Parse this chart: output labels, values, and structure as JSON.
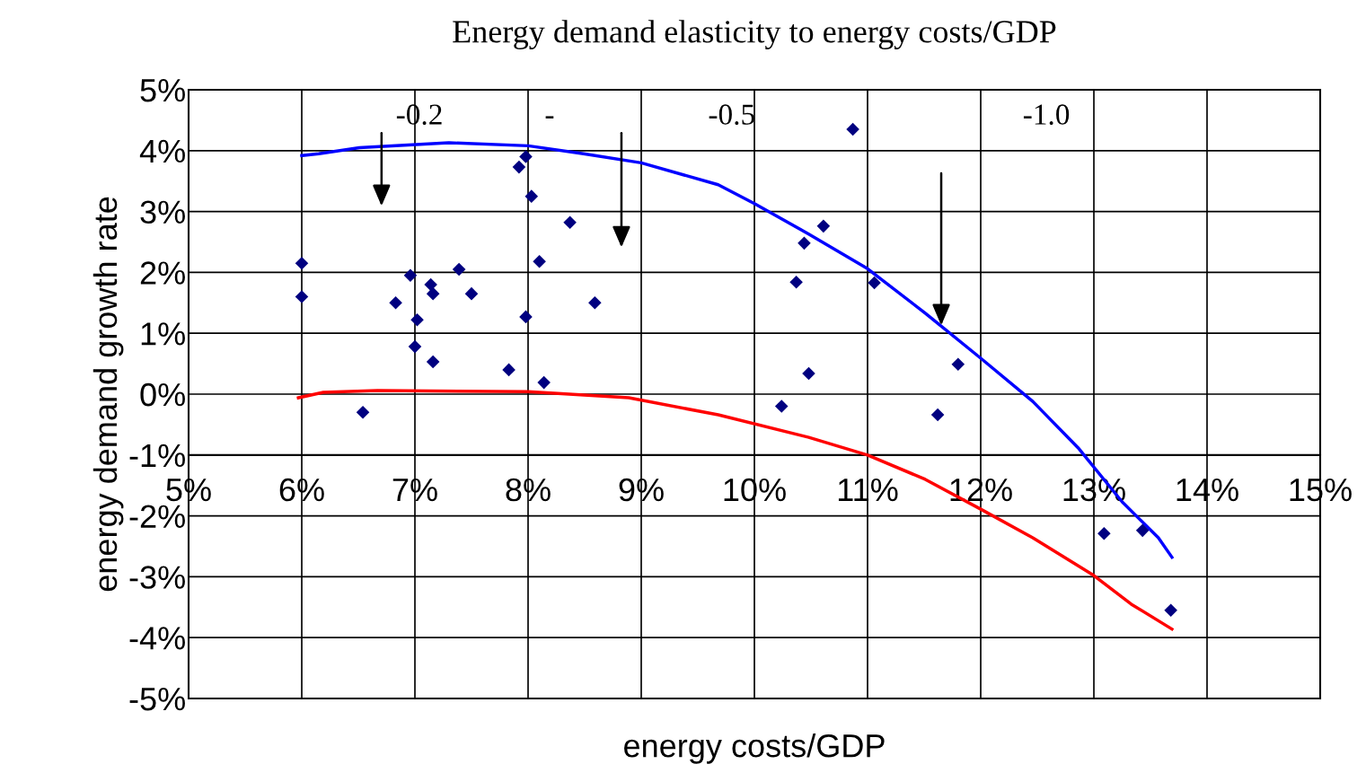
{
  "chart_data": {
    "type": "scatter",
    "title": "Energy demand elasticity to energy costs/GDP",
    "xlabel": "energy costs/GDP",
    "ylabel": "energy demand growth rate",
    "xlim": [
      5,
      15
    ],
    "ylim": [
      -5,
      5
    ],
    "xticks": [
      {
        "value": 5,
        "label": "5%"
      },
      {
        "value": 6,
        "label": "6%"
      },
      {
        "value": 7,
        "label": "7%"
      },
      {
        "value": 8,
        "label": "8%"
      },
      {
        "value": 9,
        "label": "9%"
      },
      {
        "value": 10,
        "label": "10%"
      },
      {
        "value": 11,
        "label": "11%"
      },
      {
        "value": 12,
        "label": "12%"
      },
      {
        "value": 13,
        "label": "13%"
      },
      {
        "value": 14,
        "label": "14%"
      },
      {
        "value": 15,
        "label": "15%"
      }
    ],
    "yticks": [
      {
        "value": 5,
        "label": "5%"
      },
      {
        "value": 4,
        "label": "4%"
      },
      {
        "value": 3,
        "label": "3%"
      },
      {
        "value": 2,
        "label": "2%"
      },
      {
        "value": 1,
        "label": "1%"
      },
      {
        "value": 0,
        "label": "0%"
      },
      {
        "value": -1,
        "label": "-1%"
      },
      {
        "value": -2,
        "label": "-2%"
      },
      {
        "value": -3,
        "label": "-3%"
      },
      {
        "value": -4,
        "label": "-4%"
      },
      {
        "value": -5,
        "label": "-5%"
      }
    ],
    "grid": true,
    "legend": false,
    "series": [
      {
        "color": "#000080",
        "marker": "diamond",
        "x": [
          6.0,
          6.0,
          6.54,
          6.83,
          6.96,
          7.02,
          7.0,
          7.14,
          7.16,
          7.16,
          7.39,
          7.5,
          7.83,
          7.92,
          7.98,
          7.98,
          8.03,
          8.1,
          8.14,
          8.37,
          8.59,
          10.24,
          10.37,
          10.44,
          10.48,
          10.61,
          10.87,
          11.06,
          11.62,
          11.8,
          13.09,
          13.43,
          13.68
        ],
        "values": [
          2.15,
          1.6,
          -0.3,
          1.5,
          1.95,
          1.22,
          0.78,
          1.8,
          1.65,
          0.53,
          2.05,
          1.65,
          0.4,
          3.73,
          3.9,
          1.27,
          3.25,
          2.18,
          0.19,
          2.82,
          1.5,
          -0.2,
          1.84,
          2.48,
          0.34,
          2.76,
          4.35,
          1.83,
          -0.34,
          0.49,
          -2.29,
          -2.24,
          -3.55
        ]
      },
      {
        "type": "line",
        "color": "#0000ff",
        "marker": "none",
        "x": [
          6.0,
          6.15,
          6.51,
          7.3,
          8.0,
          8.49,
          9.0,
          9.68,
          10.0,
          10.48,
          11.0,
          11.51,
          12.0,
          12.46,
          12.86,
          13.25,
          13.57,
          13.69
        ],
        "values": [
          3.92,
          3.95,
          4.05,
          4.13,
          4.08,
          3.95,
          3.8,
          3.44,
          3.13,
          2.63,
          2.06,
          1.33,
          0.59,
          -0.12,
          -0.88,
          -1.77,
          -2.36,
          -2.68
        ]
      },
      {
        "type": "line",
        "color": "#ff0000",
        "marker": "none",
        "x": [
          5.97,
          6.19,
          6.67,
          8.0,
          8.89,
          9.68,
          10.48,
          11.0,
          11.51,
          12.0,
          12.46,
          13.0,
          13.33,
          13.69
        ],
        "values": [
          -0.06,
          0.03,
          0.06,
          0.04,
          -0.06,
          -0.34,
          -0.71,
          -1.0,
          -1.4,
          -1.89,
          -2.36,
          -2.98,
          -3.45,
          -3.86
        ]
      }
    ],
    "annotations": [
      "-0.2",
      "-",
      "-0.5",
      "-1.0"
    ]
  }
}
